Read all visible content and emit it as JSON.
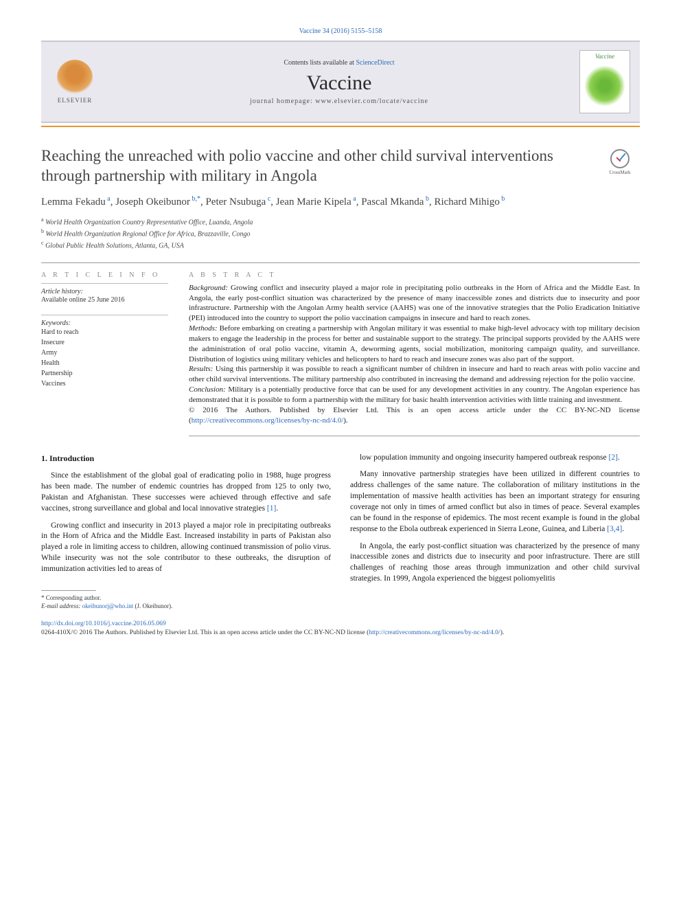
{
  "citation": "Vaccine 34 (2016) 5155–5158",
  "header": {
    "contents_prefix": "Contents lists available at ",
    "contents_link": "ScienceDirect",
    "journal": "Vaccine",
    "homepage": "journal homepage: www.elsevier.com/locate/vaccine",
    "publisher": "ELSEVIER",
    "cover_label": "Vaccine"
  },
  "crossmark": "CrossMark",
  "title": "Reaching the unreached with polio vaccine and other child survival interventions through partnership with military in Angola",
  "authors_html": "Lemma Fekadu<sup> a</sup>, Joseph Okeibunor<sup> b,*</sup>, Peter Nsubuga<sup> c</sup>, Jean Marie Kipela<sup> a</sup>, Pascal Mkanda<sup> b</sup>, Richard Mihigo<sup> b</sup>",
  "affiliations": [
    {
      "sup": "a",
      "text": "World Health Organization Country Representative Office, Luanda, Angola"
    },
    {
      "sup": "b",
      "text": "World Health Organization Regional Office for Africa, Brazzaville, Congo"
    },
    {
      "sup": "c",
      "text": "Global Public Health Solutions, Atlanta, GA, USA"
    }
  ],
  "article_info": {
    "heading": "A R T I C L E   I N F O",
    "history_label": "Article history:",
    "history_text": "Available online 25 June 2016",
    "keywords_label": "Keywords:",
    "keywords": [
      "Hard to reach",
      "Insecure",
      "Army",
      "Health",
      "Partnership",
      "Vaccines"
    ]
  },
  "abstract": {
    "heading": "A B S T R A C T",
    "background_label": "Background:",
    "background": " Growing conflict and insecurity played a major role in precipitating polio outbreaks in the Horn of Africa and the Middle East. In Angola, the early post-conflict situation was characterized by the presence of many inaccessible zones and districts due to insecurity and poor infrastructure. Partnership with the Angolan Army health service (AAHS) was one of the innovative strategies that the Polio Eradication Initiative (PEI) introduced into the country to support the polio vaccination campaigns in insecure and hard to reach zones.",
    "methods_label": "Methods:",
    "methods": " Before embarking on creating a partnership with Angolan military it was essential to make high-level advocacy with top military decision makers to engage the leadership in the process for better and sustainable support to the strategy. The principal supports provided by the AAHS were the administration of oral polio vaccine, vitamin A, deworming agents, social mobilization, monitoring campaign quality, and surveillance. Distribution of logistics using military vehicles and helicopters to hard to reach and insecure zones was also part of the support.",
    "results_label": "Results:",
    "results": " Using this partnership it was possible to reach a significant number of children in insecure and hard to reach areas with polio vaccine and other child survival interventions. The military partnership also contributed in increasing the demand and addressing rejection for the polio vaccine.",
    "conclusion_label": "Conclusion:",
    "conclusion": " Military is a potentially productive force that can be used for any development activities in any country. The Angolan experience has demonstrated that it is possible to form a partnership with the military for basic health intervention activities with little training and investment.",
    "copyright": "© 2016 The Authors. Published by Elsevier Ltd. This is an open access article under the CC BY-NC-ND license (",
    "license_link": "http://creativecommons.org/licenses/by-nc-nd/4.0/",
    "copyright_close": ")."
  },
  "body": {
    "section_heading": "1. Introduction",
    "left_paras": [
      "Since the establishment of the global goal of eradicating polio in 1988, huge progress has been made. The number of endemic countries has dropped from 125 to only two, Pakistan and Afghanistan. These successes were achieved through effective and safe vaccines, strong surveillance and global and local innovative strategies [1].",
      "Growing conflict and insecurity in 2013 played a major role in precipitating outbreaks in the Horn of Africa and the Middle East. Increased instability in parts of Pakistan also played a role in limiting access to children, allowing continued transmission of polio virus. While insecurity was not the sole contributor to these outbreaks, the disruption of immunization activities led to areas of"
    ],
    "right_paras": [
      "low population immunity and ongoing insecurity hampered outbreak response [2].",
      "Many innovative partnership strategies have been utilized in different countries to address challenges of the same nature. The collaboration of military institutions in the implementation of massive health activities has been an important strategy for ensuring coverage not only in times of armed conflict but also in times of peace. Several examples can be found in the response of epidemics. The most recent example is found in the global response to the Ebola outbreak experienced in Sierra Leone, Guinea, and Liberia [3,4].",
      "In Angola, the early post-conflict situation was characterized by the presence of many inaccessible zones and districts due to insecurity and poor infrastructure. There are still challenges of reaching those areas through immunization and other child survival strategies. In 1999, Angola experienced the biggest poliomyelitis"
    ]
  },
  "footnotes": {
    "corresponding": "* Corresponding author.",
    "email_label": "E-mail address: ",
    "email": "okeibunorj@who.int",
    "email_person": " (J. Okeibunor)."
  },
  "footer": {
    "doi": "http://dx.doi.org/10.1016/j.vaccine.2016.05.069",
    "line2": "0264-410X/© 2016 The Authors. Published by Elsevier Ltd. This is an open access article under the CC BY-NC-ND license (",
    "license": "http://creativecommons.org/licenses/by-nc-nd/4.0/",
    "line2_close": ")."
  },
  "colors": {
    "link": "#2a6ab8",
    "orange_rule": "#e8942e",
    "header_bg": "#e8e8ee"
  }
}
